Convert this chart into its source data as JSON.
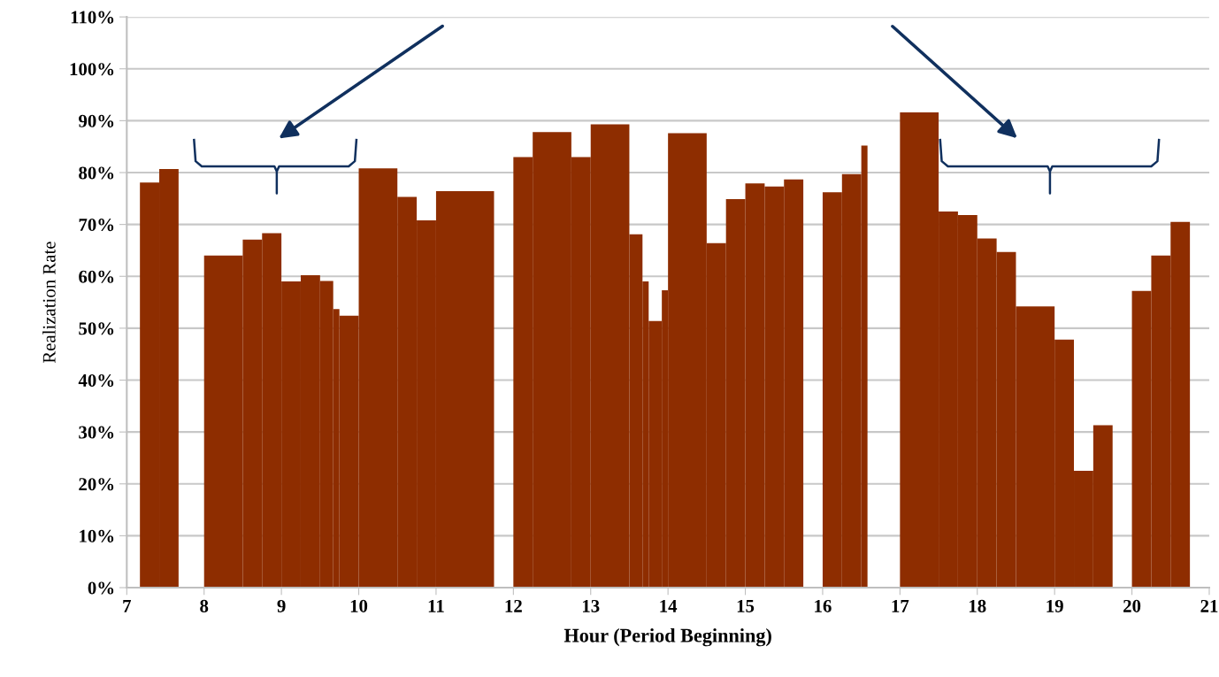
{
  "chart_data": {
    "type": "histogram",
    "xlabel": "Hour (Period Beginning)",
    "ylabel": "Realization Rate",
    "bins": [
      7.17,
      7.42,
      7.67,
      8.0,
      8.5,
      8.75,
      9.0,
      9.25,
      9.5,
      9.67,
      9.75,
      10.0,
      10.5,
      10.75,
      11.0,
      11.75,
      12.0,
      12.25,
      12.75,
      13.0,
      13.5,
      13.67,
      13.75,
      13.92,
      14.0,
      14.5,
      14.75,
      15.0,
      15.25,
      15.5,
      15.75,
      16.0,
      16.25,
      16.5,
      16.58,
      17.0,
      17.5,
      17.75,
      18.0,
      18.25,
      18.5,
      19.0,
      19.25,
      19.5,
      19.75,
      20.0,
      20.25,
      20.5,
      20.75
    ],
    "values": [
      78.1,
      80.7,
      null,
      64.0,
      67.1,
      68.3,
      59.0,
      60.2,
      59.1,
      53.7,
      52.4,
      80.8,
      75.3,
      70.8,
      76.4,
      null,
      83.0,
      87.8,
      83.0,
      89.3,
      68.1,
      59.0,
      51.4,
      57.3,
      87.6,
      66.4,
      74.9,
      77.9,
      77.3,
      78.7,
      null,
      76.2,
      79.7,
      85.2,
      null,
      91.6,
      72.5,
      71.8,
      67.3,
      64.7,
      54.2,
      47.8,
      22.5,
      31.3,
      null,
      57.2,
      64.0,
      70.5
    ],
    "color": "#8e2d00",
    "xlim": [
      7,
      21
    ],
    "xticks": [
      7,
      8,
      9,
      10,
      11,
      12,
      13,
      14,
      15,
      16,
      17,
      18,
      19,
      20,
      21
    ],
    "ylim": [
      0,
      110
    ],
    "yticks": [
      {
        "value": 0,
        "label": "0%"
      },
      {
        "value": 10,
        "label": "10%"
      },
      {
        "value": 20,
        "label": "20%"
      },
      {
        "value": 30,
        "label": "30%"
      },
      {
        "value": 40,
        "label": "40%"
      },
      {
        "value": 50,
        "label": "50%"
      },
      {
        "value": 60,
        "label": "60%"
      },
      {
        "value": 70,
        "label": "70%"
      },
      {
        "value": 80,
        "label": "80%"
      },
      {
        "value": 90,
        "label": "90%"
      },
      {
        "value": 100,
        "label": "100%"
      },
      {
        "value": 110,
        "label": "110%"
      }
    ],
    "grid": "y"
  }
}
